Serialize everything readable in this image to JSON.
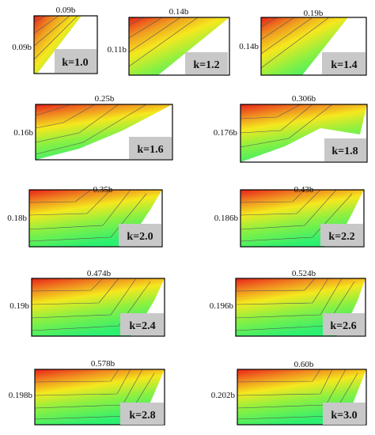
{
  "panels": [
    {
      "k": "k=1.0",
      "width": "0.09b",
      "height": "0.09b"
    },
    {
      "k": "k=1.2",
      "width": "0.14b",
      "height": "0.11b"
    },
    {
      "k": "k=1.4",
      "width": "0.19b",
      "height": "0.14b"
    },
    {
      "k": "k=1.6",
      "width": "0.25b",
      "height": "0.16b"
    },
    {
      "k": "k=1.8",
      "width": "0.306b",
      "height": "0.176b"
    },
    {
      "k": "k=2.0",
      "width": "0.35b",
      "height": "0.18b"
    },
    {
      "k": "k=2.2",
      "width": "0.43b",
      "height": "0.186b"
    },
    {
      "k": "k=2.4",
      "width": "0.474b",
      "height": "0.19b"
    },
    {
      "k": "k=2.6",
      "width": "0.524b",
      "height": "0.196b"
    },
    {
      "k": "k=2.8",
      "width": "0.578b",
      "height": "0.198b"
    },
    {
      "k": "k=3.0",
      "width": "0.60b",
      "height": "0.202b"
    }
  ],
  "colors": {
    "hot": "#e8201a",
    "mid": "#f5e81e",
    "cool": "#2cf070",
    "label_bg": "#c8c8c8"
  }
}
